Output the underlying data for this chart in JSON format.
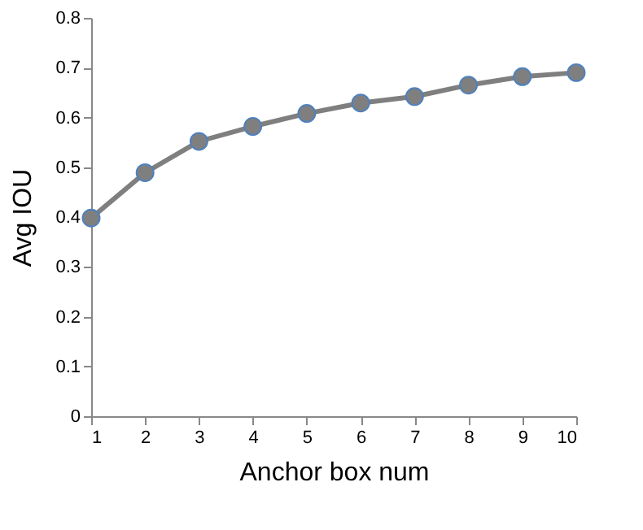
{
  "chart_data": {
    "type": "line",
    "xlabel": "Anchor box num",
    "ylabel": "Avg IOU",
    "x": [
      1,
      2,
      3,
      4,
      5,
      6,
      7,
      8,
      9,
      10
    ],
    "series": [
      {
        "color": "#7f7f7f",
        "values": [
          0.398,
          0.489,
          0.552,
          0.582,
          0.608,
          0.629,
          0.642,
          0.665,
          0.682,
          0.69
        ]
      }
    ],
    "xlim": [
      1,
      10
    ],
    "xticks": [
      1,
      2,
      3,
      4,
      5,
      6,
      7,
      8,
      9,
      10
    ],
    "ylim": [
      0,
      0.8
    ],
    "yticks": [
      0,
      0.1,
      0.2,
      0.3,
      0.4,
      0.5,
      0.6,
      0.7,
      0.8
    ],
    "grid": false,
    "legend": false,
    "marker": "circle",
    "line_style": "solid"
  }
}
